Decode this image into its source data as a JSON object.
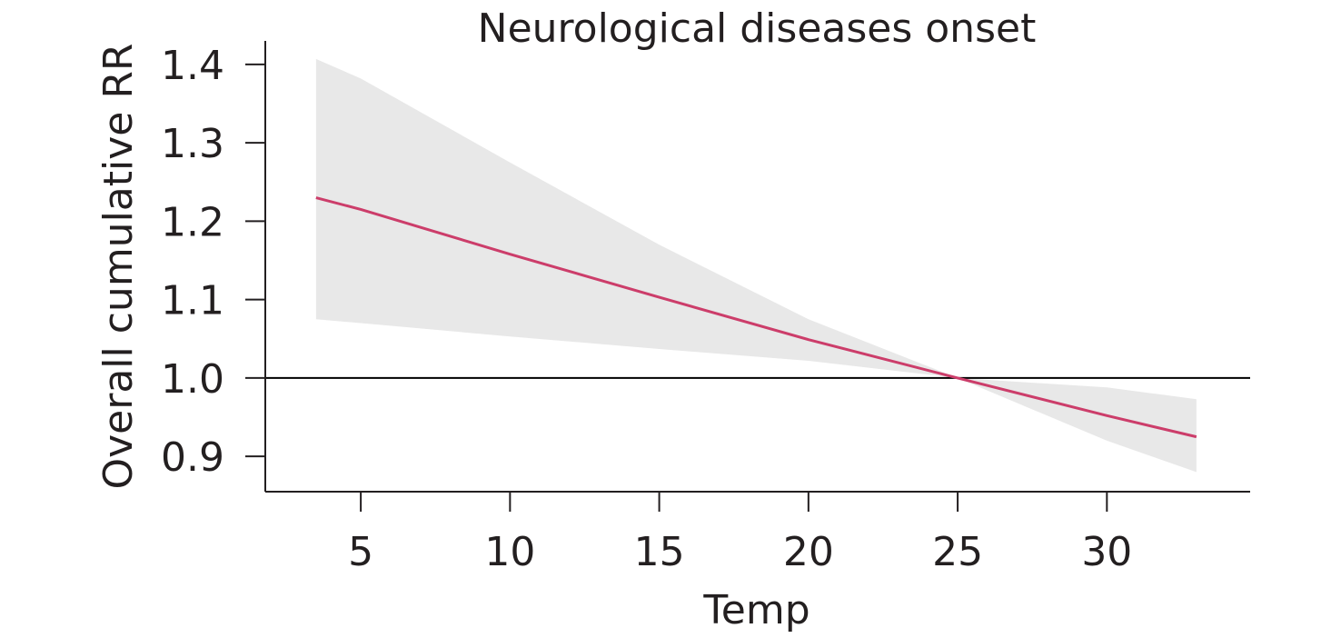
{
  "chart_data": {
    "type": "line",
    "title": "Neurological diseases onset",
    "xlabel": "Temp",
    "ylabel": "Overall cumulative RR",
    "xlim": [
      1.8,
      34.8
    ],
    "ylim": [
      0.855,
      1.43
    ],
    "x_ticks": [
      5,
      10,
      15,
      20,
      25,
      30
    ],
    "x_tick_labels": [
      "5",
      "10",
      "15",
      "20",
      "25",
      "30"
    ],
    "y_ticks": [
      0.9,
      1.0,
      1.1,
      1.2,
      1.3,
      1.4
    ],
    "y_tick_labels": [
      "0.9",
      "1.0",
      "1.1",
      "1.2",
      "1.3",
      "1.4"
    ],
    "reference_line": 1.0,
    "grid": false,
    "colors": {
      "line": "#cc3d6a",
      "band": "#e8e8e8",
      "axis": "#231f20",
      "reference": "#000000"
    },
    "series": [
      {
        "x": [
          3.5,
          5,
          10,
          15,
          20,
          25,
          30,
          33
        ],
        "values": [
          1.23,
          1.215,
          1.158,
          1.103,
          1.049,
          1.0,
          0.952,
          0.925
        ],
        "lower": [
          1.075,
          1.07,
          1.053,
          1.037,
          1.022,
          1.0,
          0.92,
          0.88
        ],
        "upper": [
          1.407,
          1.382,
          1.275,
          1.17,
          1.075,
          1.0,
          0.988,
          0.973
        ]
      }
    ]
  }
}
